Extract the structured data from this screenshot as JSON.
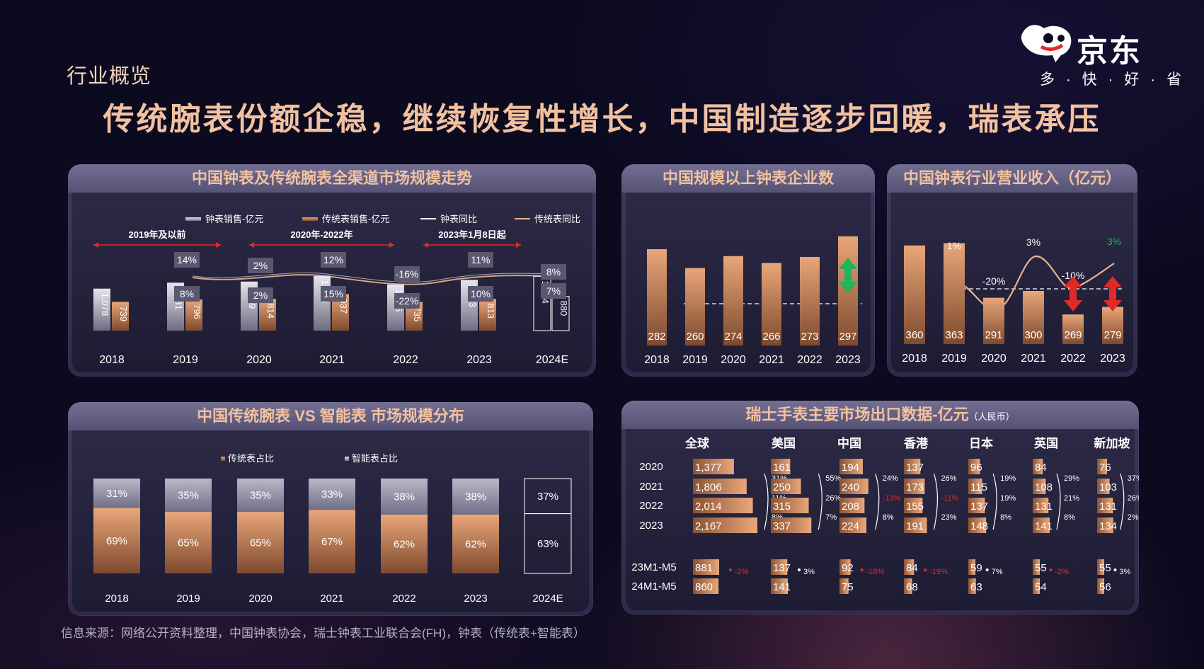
{
  "section_label": "行业概览",
  "headline": "传统腕表份额企稳，继续恢复性增长，中国制造逐步回暖，瑞表承压",
  "logo": {
    "name": "京东",
    "slogan": "多 · 快 · 好 · 省"
  },
  "footer": "信息来源：网络公开资料整理，中国钟表协会，瑞士钟表工业联合会(FH)，钟表（传统表+智能表）",
  "colors": {
    "copper": "#e09a6c",
    "silver": "#c9c9d6",
    "red": "#e02a2a",
    "green": "#22b45a"
  },
  "chart_data": [
    {
      "id": "market-size",
      "type": "bar",
      "title": "中国钟表及传统腕表全渠道市场规模走势",
      "legend": [
        "钟表销售-亿元",
        "传统表销售-亿元",
        "钟表同比",
        "传统表同比"
      ],
      "periods": [
        {
          "label": "2019年及以前"
        },
        {
          "label": "2020年-2022年"
        },
        {
          "label": "2023年1月8日起"
        }
      ],
      "categories": [
        "2018",
        "2019",
        "2020",
        "2021",
        "2022",
        "2023",
        "2024E"
      ],
      "series": [
        {
          "name": "钟表销售-亿元",
          "values": [
            1078,
            1231,
            1259,
            1404,
            1185,
            1303,
            1394
          ],
          "labels": [
            "1,078",
            "1,231",
            "1,259",
            "1,404",
            "1,185",
            "1,303",
            "1,394"
          ]
        },
        {
          "name": "传统表销售-亿元",
          "values": [
            739,
            796,
            814,
            937,
            735,
            813,
            880
          ],
          "labels": [
            "739",
            "796",
            "814",
            "937",
            "735",
            "813",
            "880"
          ]
        }
      ],
      "yoy_clock": [
        "",
        "14%",
        "2%",
        "12%",
        "-16%",
        "11%",
        "8%"
      ],
      "yoy_traditional": [
        "",
        "8%",
        "2%",
        "15%",
        "-22%",
        "10%",
        "7%"
      ]
    },
    {
      "id": "enterprises",
      "type": "bar",
      "title": "中国规模以上钟表企业数",
      "categories": [
        "2018",
        "2019",
        "2020",
        "2021",
        "2022",
        "2023"
      ],
      "values": [
        282,
        260,
        274,
        266,
        273,
        297
      ],
      "arrow": "green-up-down"
    },
    {
      "id": "revenue",
      "type": "bar",
      "title": "中国钟表行业营业收入（亿元）",
      "categories": [
        "2018",
        "2019",
        "2020",
        "2021",
        "2022",
        "2023"
      ],
      "values": [
        360,
        363,
        291,
        300,
        269,
        279
      ],
      "yoy": [
        {
          "text": "1%"
        },
        {
          "text": "-20%"
        },
        {
          "text": "3%"
        },
        {
          "text": "-10%"
        },
        {
          "text": "3%",
          "color": "#22b45a"
        }
      ]
    },
    {
      "id": "share",
      "type": "bar",
      "title": "中国传统腕表 VS 智能表 市场规模分布",
      "legend": [
        "传统表占比",
        "智能表占比"
      ],
      "categories": [
        "2018",
        "2019",
        "2020",
        "2021",
        "2022",
        "2023",
        "2024E"
      ],
      "series": [
        {
          "name": "传统表占比",
          "values": [
            69,
            65,
            65,
            67,
            62,
            62,
            63
          ]
        },
        {
          "name": "智能表占比",
          "values": [
            31,
            35,
            35,
            33,
            38,
            38,
            37
          ]
        }
      ]
    },
    {
      "id": "swiss-export",
      "type": "table",
      "title": "瑞士手表主要市场出口数据-亿元",
      "title_unit": "（人民币）",
      "markets": [
        "全球",
        "美国",
        "中国",
        "香港",
        "日本",
        "英国",
        "新加坡"
      ],
      "years": [
        "2020",
        "2021",
        "2022",
        "2023"
      ],
      "year_values": [
        [
          "1,377",
          "1,806",
          "2,014",
          "2,167"
        ],
        [
          "161",
          "250",
          "315",
          "337"
        ],
        [
          "194",
          "240",
          "208",
          "224"
        ],
        [
          "137",
          "173",
          "155",
          "191"
        ],
        [
          "96",
          "115",
          "137",
          "148"
        ],
        [
          "84",
          "108",
          "131",
          "141"
        ],
        [
          "76",
          "103",
          "131",
          "134"
        ]
      ],
      "year_numeric": [
        [
          1377,
          1806,
          2014,
          2167
        ],
        [
          161,
          250,
          315,
          337
        ],
        [
          194,
          240,
          208,
          224
        ],
        [
          137,
          173,
          155,
          191
        ],
        [
          96,
          115,
          137,
          148
        ],
        [
          84,
          108,
          131,
          141
        ],
        [
          76,
          103,
          131,
          134
        ]
      ],
      "year_growth": [
        [
          "31%",
          "11%",
          "8%"
        ],
        [
          "55%",
          "26%",
          "7%"
        ],
        [
          "24%",
          "-13%",
          "8%"
        ],
        [
          "26%",
          "-11%",
          "23%"
        ],
        [
          "19%",
          "19%",
          "8%"
        ],
        [
          "29%",
          "21%",
          "8%"
        ],
        [
          "37%",
          "26%",
          "2%"
        ]
      ],
      "periods": [
        "23M1-M5",
        "24M1-M5"
      ],
      "period_values": [
        [
          "881",
          "860"
        ],
        [
          "137",
          "141"
        ],
        [
          "92",
          "75"
        ],
        [
          "84",
          "68"
        ],
        [
          "59",
          "63"
        ],
        [
          "55",
          "54"
        ],
        [
          "55",
          "56"
        ]
      ],
      "period_numeric": [
        [
          881,
          860
        ],
        [
          137,
          141
        ],
        [
          92,
          75
        ],
        [
          84,
          68
        ],
        [
          59,
          63
        ],
        [
          55,
          54
        ],
        [
          55,
          56
        ]
      ],
      "period_growth": [
        "-2%",
        "3%",
        "-18%",
        "-19%",
        "7%",
        "-2%",
        "3%"
      ]
    }
  ]
}
